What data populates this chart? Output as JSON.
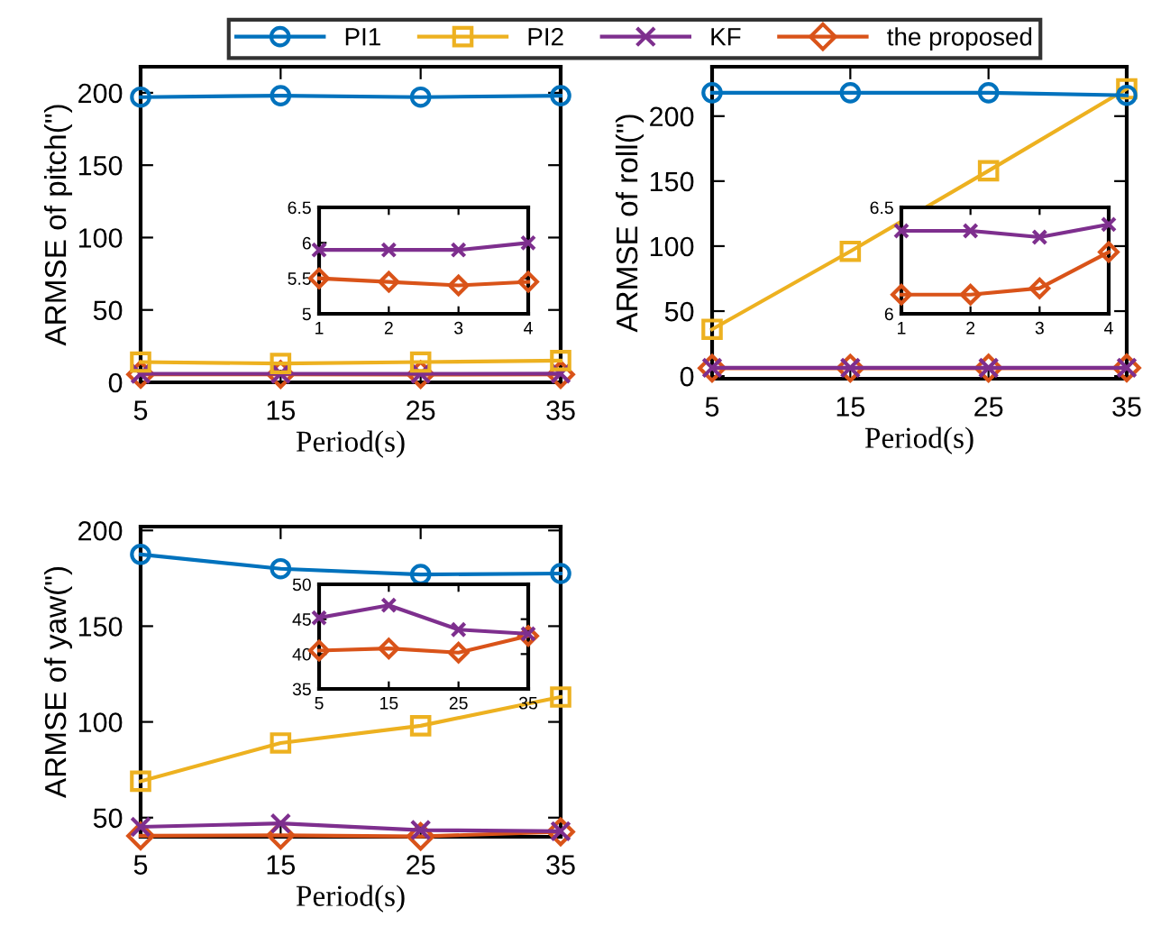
{
  "chart_data": [
    {
      "type": "line",
      "ylabel": "ARMSE of pitch(\")",
      "xlabel": "Period(s)",
      "x": [
        5,
        15,
        25,
        35
      ],
      "xlim": [
        5,
        35
      ],
      "xticks": [
        5,
        15,
        25,
        35
      ],
      "ylim": [
        0,
        218
      ],
      "yticks": [
        0,
        50,
        100,
        150,
        200
      ],
      "grid": false,
      "legend": "top",
      "series": [
        {
          "name": "PI1",
          "color": "#0072bd",
          "marker": "circle",
          "values": [
            197,
            198,
            197,
            198
          ]
        },
        {
          "name": "PI2",
          "color": "#edb120",
          "marker": "square",
          "values": [
            14,
            13,
            14,
            15
          ]
        },
        {
          "name": "KF",
          "color": "#7e2f8e",
          "marker": "cross",
          "values": [
            5.9,
            5.9,
            5.9,
            6.0
          ]
        },
        {
          "name": "the proposed",
          "color": "#d95319",
          "marker": "diamond",
          "values": [
            5.5,
            5.45,
            5.4,
            5.45
          ]
        }
      ]
    },
    {
      "type": "line",
      "x": [
        1,
        2,
        3,
        4
      ],
      "xlim": [
        1,
        4
      ],
      "xticks": [
        1,
        2,
        3,
        4
      ],
      "ylim": [
        5,
        6.5
      ],
      "yticks": [
        5,
        5.5,
        6,
        6.5
      ],
      "grid": false,
      "series": [
        {
          "color": "#7e2f8e",
          "marker": "cross",
          "values": [
            5.9,
            5.9,
            5.9,
            6.0
          ]
        },
        {
          "color": "#d95319",
          "marker": "diamond",
          "values": [
            5.5,
            5.45,
            5.4,
            5.45
          ]
        }
      ]
    },
    {
      "type": "line",
      "ylabel": "ARMSE of roll(\")",
      "xlabel": "Period(s)",
      "x": [
        5,
        15,
        25,
        35
      ],
      "xlim": [
        5,
        35
      ],
      "xticks": [
        5,
        15,
        25,
        35
      ],
      "ylim": [
        -2,
        238
      ],
      "yticks": [
        0,
        50,
        100,
        150,
        200
      ],
      "grid": false,
      "series": [
        {
          "color": "#0072bd",
          "marker": "circle",
          "values": [
            218,
            218,
            218,
            216
          ]
        },
        {
          "color": "#edb120",
          "marker": "square",
          "values": [
            36,
            96,
            158,
            221
          ]
        },
        {
          "color": "#7e2f8e",
          "marker": "cross",
          "values": [
            6.39,
            6.39,
            6.36,
            6.42
          ]
        },
        {
          "color": "#d95319",
          "marker": "diamond",
          "values": [
            6.09,
            6.09,
            6.12,
            6.29
          ]
        }
      ]
    },
    {
      "type": "line",
      "x": [
        1,
        2,
        3,
        4
      ],
      "xlim": [
        1,
        4
      ],
      "xticks": [
        1,
        2,
        3,
        4
      ],
      "ylim": [
        6,
        6.5
      ],
      "yticks": [
        6,
        6.5
      ],
      "grid": false,
      "series": [
        {
          "color": "#7e2f8e",
          "marker": "cross",
          "values": [
            6.39,
            6.39,
            6.36,
            6.42
          ]
        },
        {
          "color": "#d95319",
          "marker": "diamond",
          "values": [
            6.09,
            6.09,
            6.12,
            6.29
          ]
        }
      ]
    },
    {
      "type": "line",
      "ylabel": "ARMSE of yaw(\")",
      "xlabel": "Period(s)",
      "x": [
        5,
        15,
        25,
        35
      ],
      "xlim": [
        5,
        35
      ],
      "xticks": [
        5,
        15,
        25,
        35
      ],
      "ylim": [
        40,
        202
      ],
      "yticks": [
        50,
        100,
        150,
        200
      ],
      "grid": false,
      "series": [
        {
          "color": "#0072bd",
          "marker": "circle",
          "values": [
            187.5,
            180,
            177,
            177.5
          ]
        },
        {
          "color": "#edb120",
          "marker": "square",
          "values": [
            69,
            89,
            98,
            113
          ]
        },
        {
          "color": "#7e2f8e",
          "marker": "cross",
          "values": [
            45.2,
            47,
            43.5,
            42.9
          ]
        },
        {
          "color": "#d95319",
          "marker": "diamond",
          "values": [
            40.5,
            40.8,
            40.2,
            42.6
          ]
        }
      ]
    },
    {
      "type": "line",
      "x": [
        5,
        15,
        25,
        35
      ],
      "xlim": [
        5,
        35
      ],
      "xticks": [
        5,
        15,
        25,
        35
      ],
      "ylim": [
        35,
        50
      ],
      "yticks": [
        35,
        40,
        45,
        50
      ],
      "grid": false,
      "series": [
        {
          "color": "#7e2f8e",
          "marker": "cross",
          "values": [
            45.2,
            47,
            43.5,
            42.9
          ]
        },
        {
          "color": "#d95319",
          "marker": "diamond",
          "values": [
            40.5,
            40.8,
            40.2,
            42.6
          ]
        }
      ]
    }
  ]
}
